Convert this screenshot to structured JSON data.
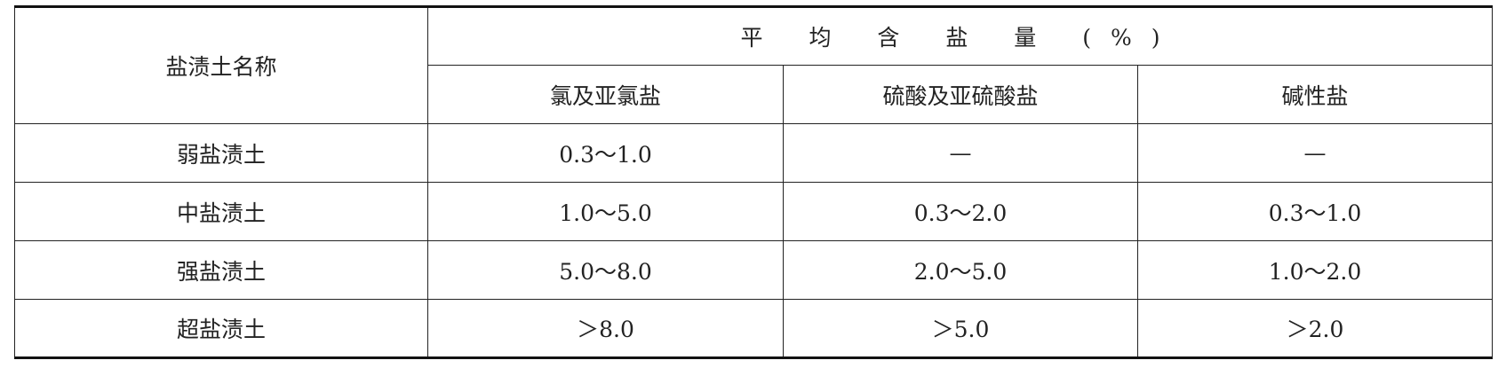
{
  "table": {
    "row_header": "盐渍土名称",
    "group_header": "平 均 含 盐 量 (%)",
    "columns": [
      "氯及亚氯盐",
      "硫酸及亚硫酸盐",
      "碱性盐"
    ],
    "rows": [
      {
        "name": "弱盐渍土",
        "values": [
          "0.3～1.0",
          "—",
          "—"
        ]
      },
      {
        "name": "中盐渍土",
        "values": [
          "1.0～5.0",
          "0.3～2.0",
          "0.3～1.0"
        ]
      },
      {
        "name": "强盐渍土",
        "values": [
          "5.0～8.0",
          "2.0～5.0",
          "1.0～2.0"
        ]
      },
      {
        "name": "超盐渍土",
        "values": [
          "＞8.0",
          "＞5.0",
          "＞2.0"
        ]
      }
    ]
  }
}
